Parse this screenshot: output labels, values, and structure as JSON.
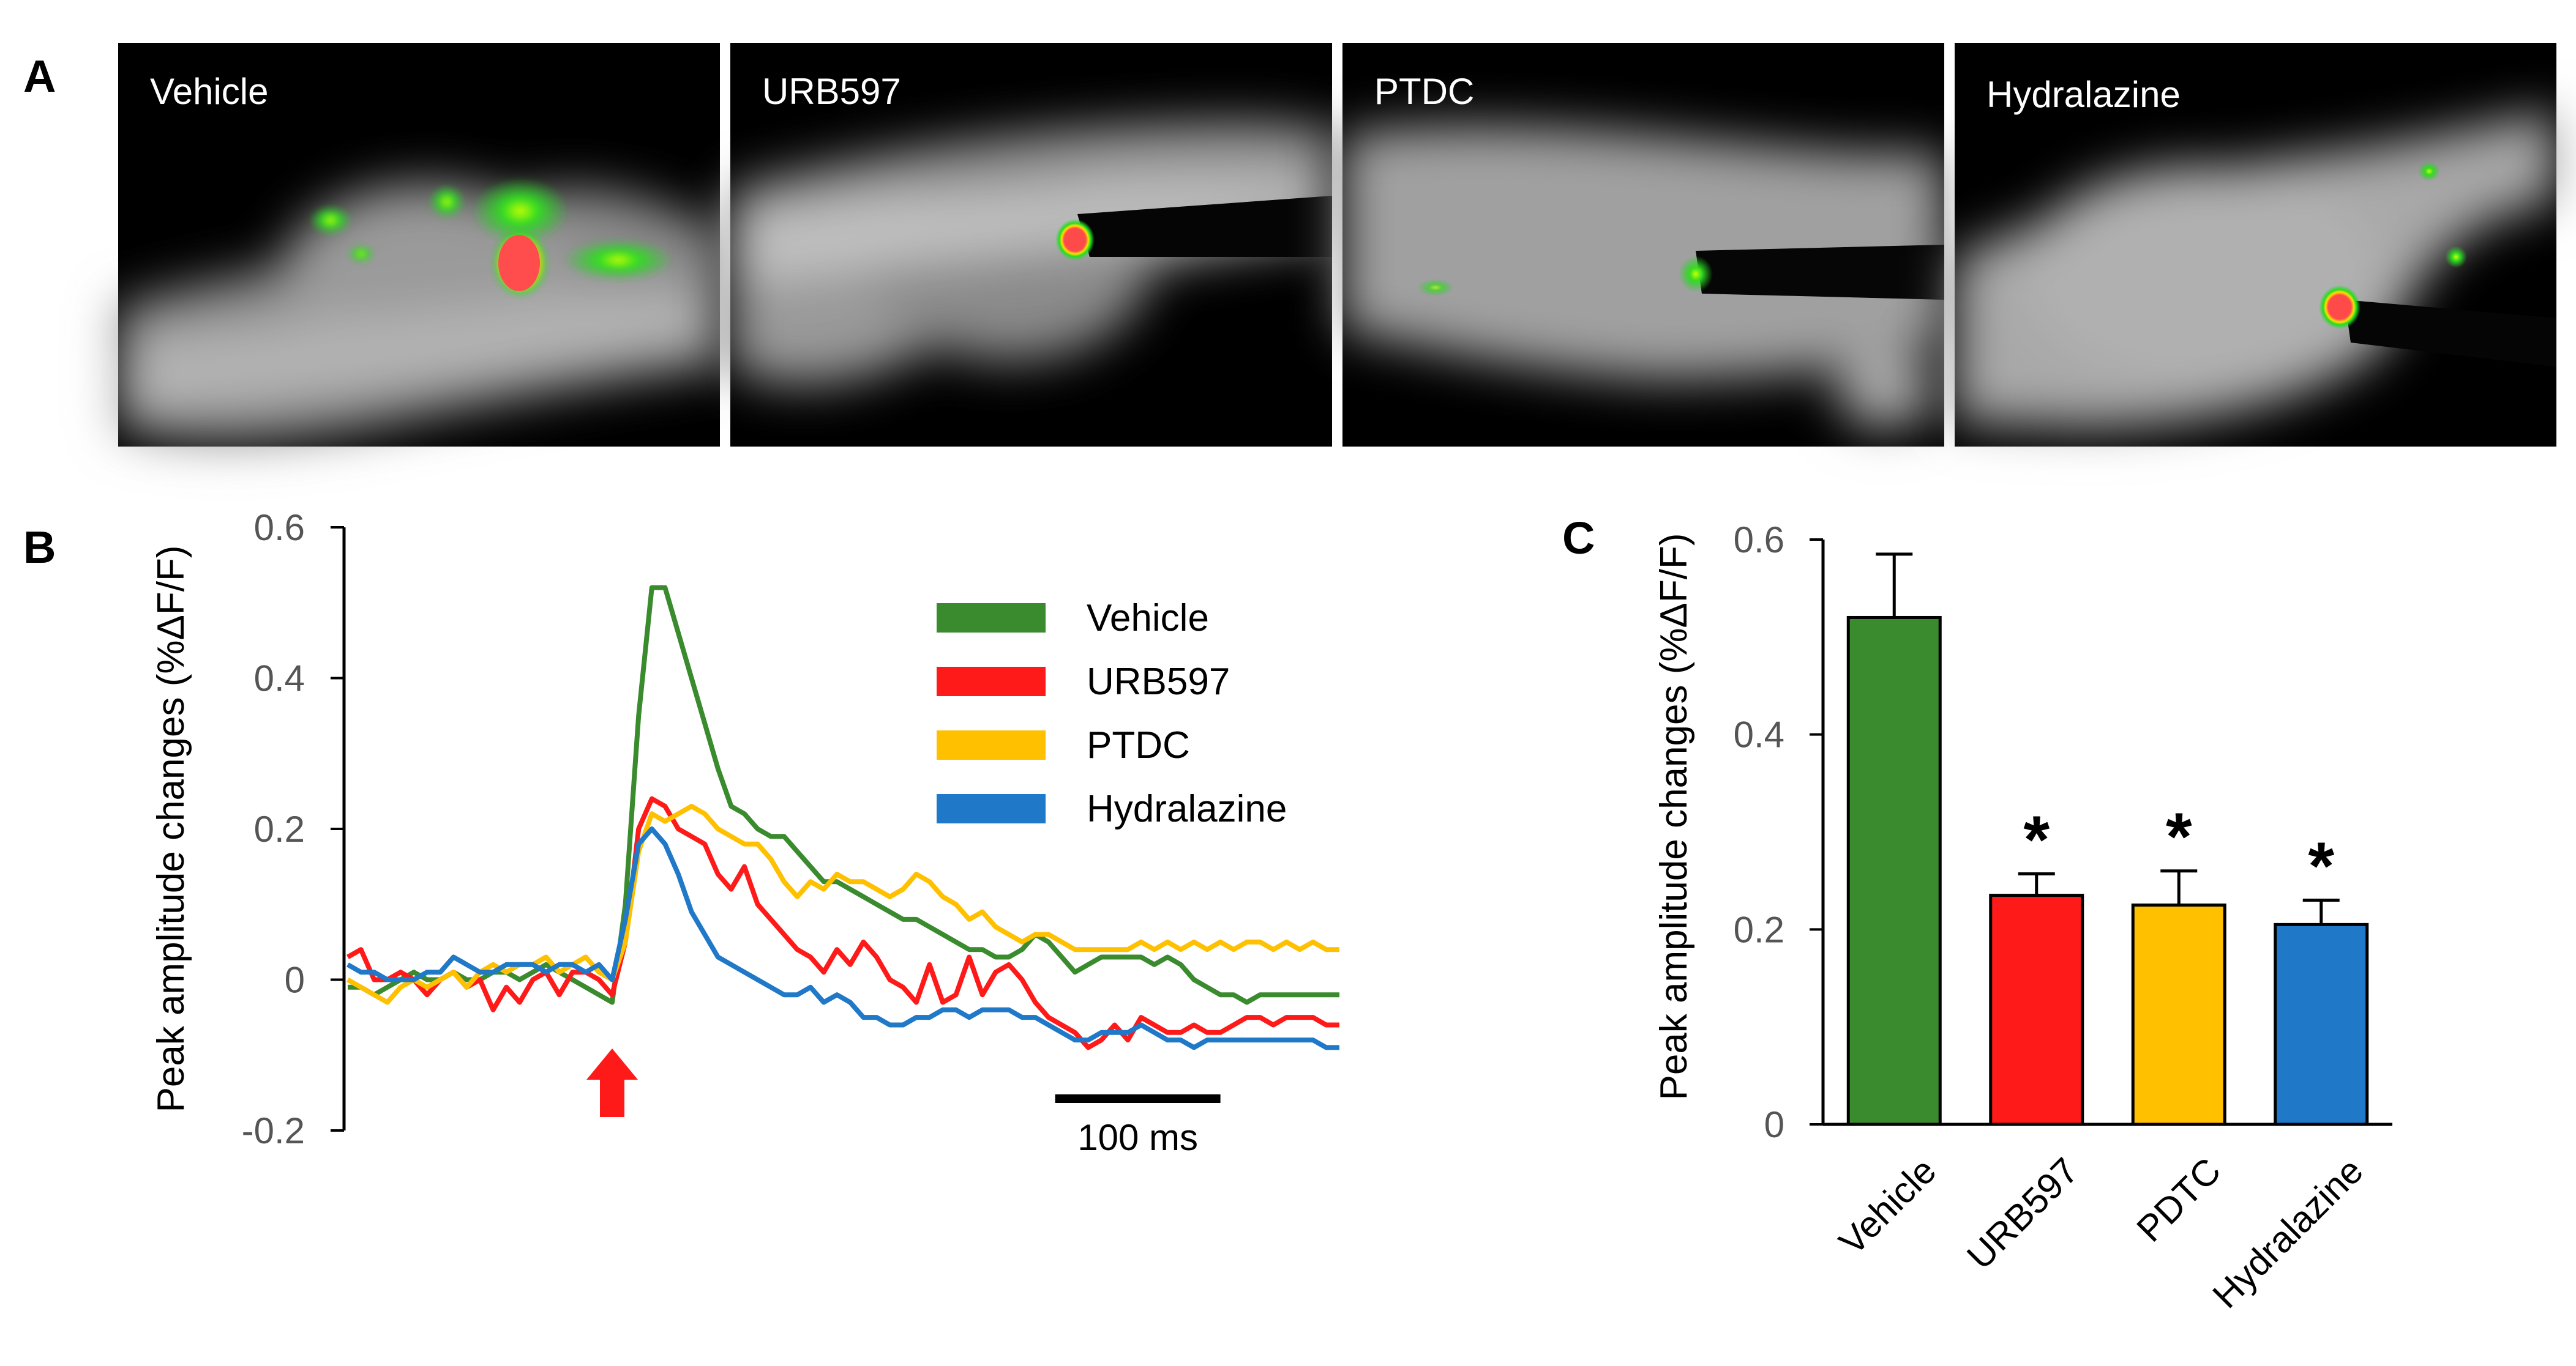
{
  "panel_letters": {
    "a": "A",
    "b": "B",
    "c": "C"
  },
  "panel_a": {
    "images": [
      {
        "label": "Vehicle"
      },
      {
        "label": "URB597"
      },
      {
        "label": "PTDC"
      },
      {
        "label": "Hydralazine"
      }
    ]
  },
  "colors": {
    "vehicle": "#3a8a2e",
    "urb597": "#ff1a1a",
    "ptdc": "#ffc000",
    "hydralazine": "#1f78c8",
    "stimulus_arrow": "#ff1a1a",
    "axis": "#000000",
    "tick_text": "#555555"
  },
  "chart_data": [
    {
      "type": "line",
      "panel": "B",
      "ylabel": "Peak amplitude changes (%ΔF/F)",
      "xlabel": "",
      "ylim": [
        -0.2,
        0.6
      ],
      "yticks": [
        "0.6",
        "0.4",
        "0.2",
        "0",
        "-0.2"
      ],
      "x_ms": [
        0,
        8,
        16,
        24,
        32,
        40,
        48,
        56,
        64,
        72,
        80,
        88,
        96,
        104,
        112,
        120,
        128,
        136,
        144,
        152,
        160,
        168,
        176,
        184,
        192,
        200,
        208,
        216,
        224,
        232,
        240,
        248,
        256,
        264,
        272,
        280,
        288,
        296,
        304,
        312,
        320,
        328,
        336,
        344,
        352,
        360,
        368,
        376,
        384,
        392,
        400,
        408,
        416,
        424,
        432,
        440,
        448,
        456,
        464,
        472,
        480,
        488,
        496,
        504,
        512,
        520,
        528,
        536,
        544,
        552,
        560,
        568,
        576,
        584,
        592,
        600
      ],
      "series": [
        {
          "name": "Vehicle",
          "color": "#3a8a2e",
          "values": [
            -0.01,
            -0.01,
            -0.02,
            -0.01,
            0,
            0.01,
            0,
            0,
            0.01,
            0,
            0,
            0.01,
            0.01,
            0,
            0.01,
            0.02,
            0.01,
            0,
            -0.01,
            -0.02,
            -0.03,
            0.1,
            0.35,
            0.52,
            0.52,
            0.46,
            0.4,
            0.34,
            0.28,
            0.23,
            0.22,
            0.2,
            0.19,
            0.19,
            0.17,
            0.15,
            0.13,
            0.13,
            0.12,
            0.11,
            0.1,
            0.09,
            0.08,
            0.08,
            0.07,
            0.06,
            0.05,
            0.04,
            0.04,
            0.03,
            0.03,
            0.04,
            0.06,
            0.05,
            0.03,
            0.01,
            0.02,
            0.03,
            0.03,
            0.03,
            0.03,
            0.02,
            0.03,
            0.02,
            0,
            -0.01,
            -0.02,
            -0.02,
            -0.03,
            -0.02,
            -0.02,
            -0.02,
            -0.02,
            -0.02,
            -0.02,
            -0.02
          ]
        },
        {
          "name": "URB597",
          "color": "#ff1a1a",
          "values": [
            0.03,
            0.04,
            0,
            0,
            0.01,
            0,
            -0.02,
            0,
            0.01,
            -0.01,
            0,
            -0.04,
            -0.01,
            -0.03,
            0,
            0.01,
            -0.02,
            0.01,
            0.01,
            0,
            -0.02,
            0.05,
            0.2,
            0.24,
            0.23,
            0.2,
            0.19,
            0.18,
            0.14,
            0.12,
            0.15,
            0.1,
            0.08,
            0.06,
            0.04,
            0.03,
            0.01,
            0.04,
            0.02,
            0.05,
            0.03,
            0,
            -0.01,
            -0.03,
            0.02,
            -0.03,
            -0.02,
            0.03,
            -0.02,
            0.01,
            0.02,
            0,
            -0.03,
            -0.05,
            -0.06,
            -0.07,
            -0.09,
            -0.08,
            -0.06,
            -0.08,
            -0.05,
            -0.06,
            -0.07,
            -0.07,
            -0.06,
            -0.07,
            -0.07,
            -0.06,
            -0.05,
            -0.05,
            -0.06,
            -0.05,
            -0.05,
            -0.05,
            -0.06,
            -0.06
          ]
        },
        {
          "name": "PTDC",
          "color": "#ffc000",
          "values": [
            0,
            -0.01,
            -0.02,
            -0.03,
            -0.01,
            0,
            -0.01,
            0,
            0.01,
            -0.01,
            0.01,
            0.02,
            0.01,
            0.02,
            0.02,
            0.03,
            0.01,
            0.02,
            0.03,
            0.01,
            0,
            0.05,
            0.17,
            0.22,
            0.21,
            0.22,
            0.23,
            0.22,
            0.2,
            0.19,
            0.18,
            0.18,
            0.16,
            0.13,
            0.11,
            0.13,
            0.12,
            0.14,
            0.13,
            0.13,
            0.12,
            0.11,
            0.12,
            0.14,
            0.13,
            0.11,
            0.1,
            0.08,
            0.09,
            0.07,
            0.06,
            0.05,
            0.06,
            0.06,
            0.05,
            0.04,
            0.04,
            0.04,
            0.04,
            0.04,
            0.05,
            0.04,
            0.05,
            0.04,
            0.05,
            0.04,
            0.05,
            0.04,
            0.05,
            0.05,
            0.04,
            0.05,
            0.04,
            0.05,
            0.04,
            0.04
          ]
        },
        {
          "name": "Hydralazine",
          "color": "#1f78c8",
          "values": [
            0.02,
            0.01,
            0.01,
            0,
            0,
            0,
            0.01,
            0.01,
            0.03,
            0.02,
            0.01,
            0.01,
            0.02,
            0.02,
            0.02,
            0.01,
            0.02,
            0.02,
            0.01,
            0.02,
            0,
            0.08,
            0.18,
            0.2,
            0.18,
            0.14,
            0.09,
            0.06,
            0.03,
            0.02,
            0.01,
            0,
            -0.01,
            -0.02,
            -0.02,
            -0.01,
            -0.03,
            -0.02,
            -0.03,
            -0.05,
            -0.05,
            -0.06,
            -0.06,
            -0.05,
            -0.05,
            -0.04,
            -0.04,
            -0.05,
            -0.04,
            -0.04,
            -0.04,
            -0.05,
            -0.05,
            -0.06,
            -0.07,
            -0.08,
            -0.08,
            -0.07,
            -0.07,
            -0.07,
            -0.06,
            -0.07,
            -0.08,
            -0.08,
            -0.09,
            -0.08,
            -0.08,
            -0.08,
            -0.08,
            -0.08,
            -0.08,
            -0.08,
            -0.08,
            -0.08,
            -0.09,
            -0.09
          ]
        }
      ],
      "legend_position": "top-right",
      "stimulus_x_ms": 160,
      "scale_bar": {
        "label": "100 ms",
        "length_ms": 100,
        "start_ms": 428
      },
      "grid": false
    },
    {
      "type": "bar",
      "panel": "C",
      "ylabel": "Peak amplitude changes (%ΔF/F)",
      "xlabel": "",
      "ylim": [
        0,
        0.6
      ],
      "yticks": [
        "0.6",
        "0.4",
        "0.2",
        "0"
      ],
      "categories": [
        "Vehicle",
        "URB597",
        "PDTC",
        "Hydralazine"
      ],
      "values": [
        0.52,
        0.235,
        0.225,
        0.205
      ],
      "errors": [
        0.065,
        0.022,
        0.035,
        0.025
      ],
      "colors": [
        "#3a8a2e",
        "#ff1a1a",
        "#ffc000",
        "#1f78c8"
      ],
      "significance": [
        "",
        "*",
        "*",
        "*"
      ],
      "grid": false
    }
  ]
}
